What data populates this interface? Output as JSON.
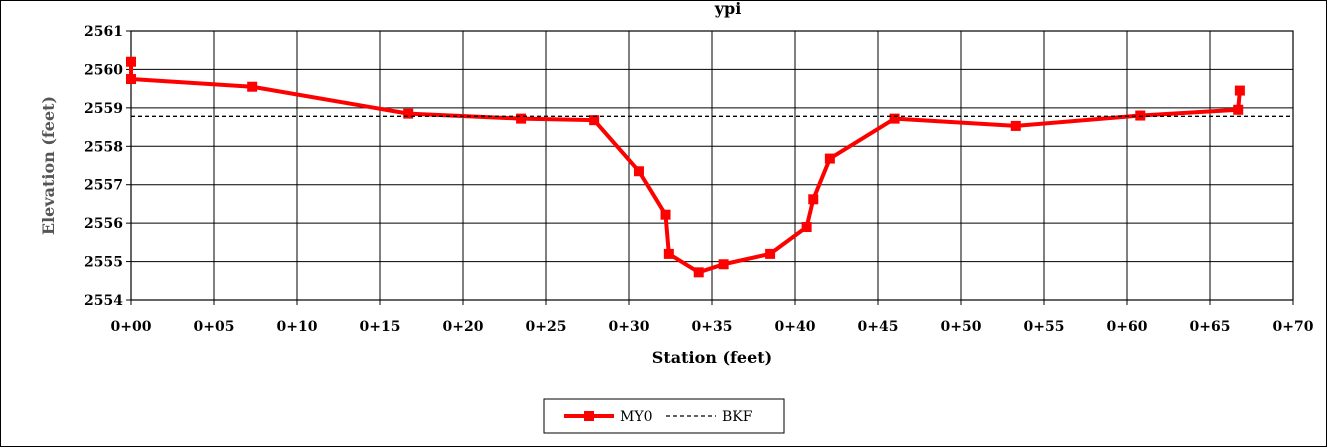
{
  "chart_data": {
    "type": "line",
    "title": "ypi",
    "xlabel": "Station (feet)",
    "ylabel": "Elevation (feet)",
    "xlim": [
      0,
      70
    ],
    "ylim": [
      2554,
      2561
    ],
    "x_ticks": [
      0,
      5,
      10,
      15,
      20,
      25,
      30,
      35,
      40,
      45,
      50,
      55,
      60,
      65,
      70
    ],
    "x_tick_labels": [
      "0+00",
      "0+05",
      "0+10",
      "0+15",
      "0+20",
      "0+25",
      "0+30",
      "0+35",
      "0+40",
      "0+45",
      "0+50",
      "0+55",
      "0+60",
      "0+65",
      "0+70"
    ],
    "y_ticks": [
      2554,
      2555,
      2556,
      2557,
      2558,
      2559,
      2560,
      2561
    ],
    "y_tick_labels": [
      "2554",
      "2555",
      "2556",
      "2557",
      "2558",
      "2559",
      "2560",
      "2561"
    ],
    "grid": true,
    "legend_position": "bottom-center",
    "series": [
      {
        "name": "MY0",
        "color": "#ff0000",
        "marker": "square",
        "line_style": "solid",
        "x": [
          0.0,
          0.0,
          7.3,
          16.7,
          23.5,
          27.9,
          30.6,
          32.2,
          32.4,
          34.2,
          35.7,
          38.5,
          40.7,
          41.1,
          42.1,
          46.0,
          53.3,
          60.8,
          66.7,
          66.8
        ],
        "y": [
          2560.2,
          2559.75,
          2559.55,
          2558.85,
          2558.72,
          2558.68,
          2557.35,
          2556.22,
          2555.2,
          2554.72,
          2554.93,
          2555.2,
          2555.9,
          2556.62,
          2557.68,
          2558.72,
          2558.53,
          2558.8,
          2558.95,
          2559.45
        ]
      },
      {
        "name": "BKF",
        "color": "#000000",
        "marker": "none",
        "line_style": "dashed",
        "x": [
          0,
          70
        ],
        "y": [
          2558.78,
          2558.78
        ]
      }
    ]
  }
}
